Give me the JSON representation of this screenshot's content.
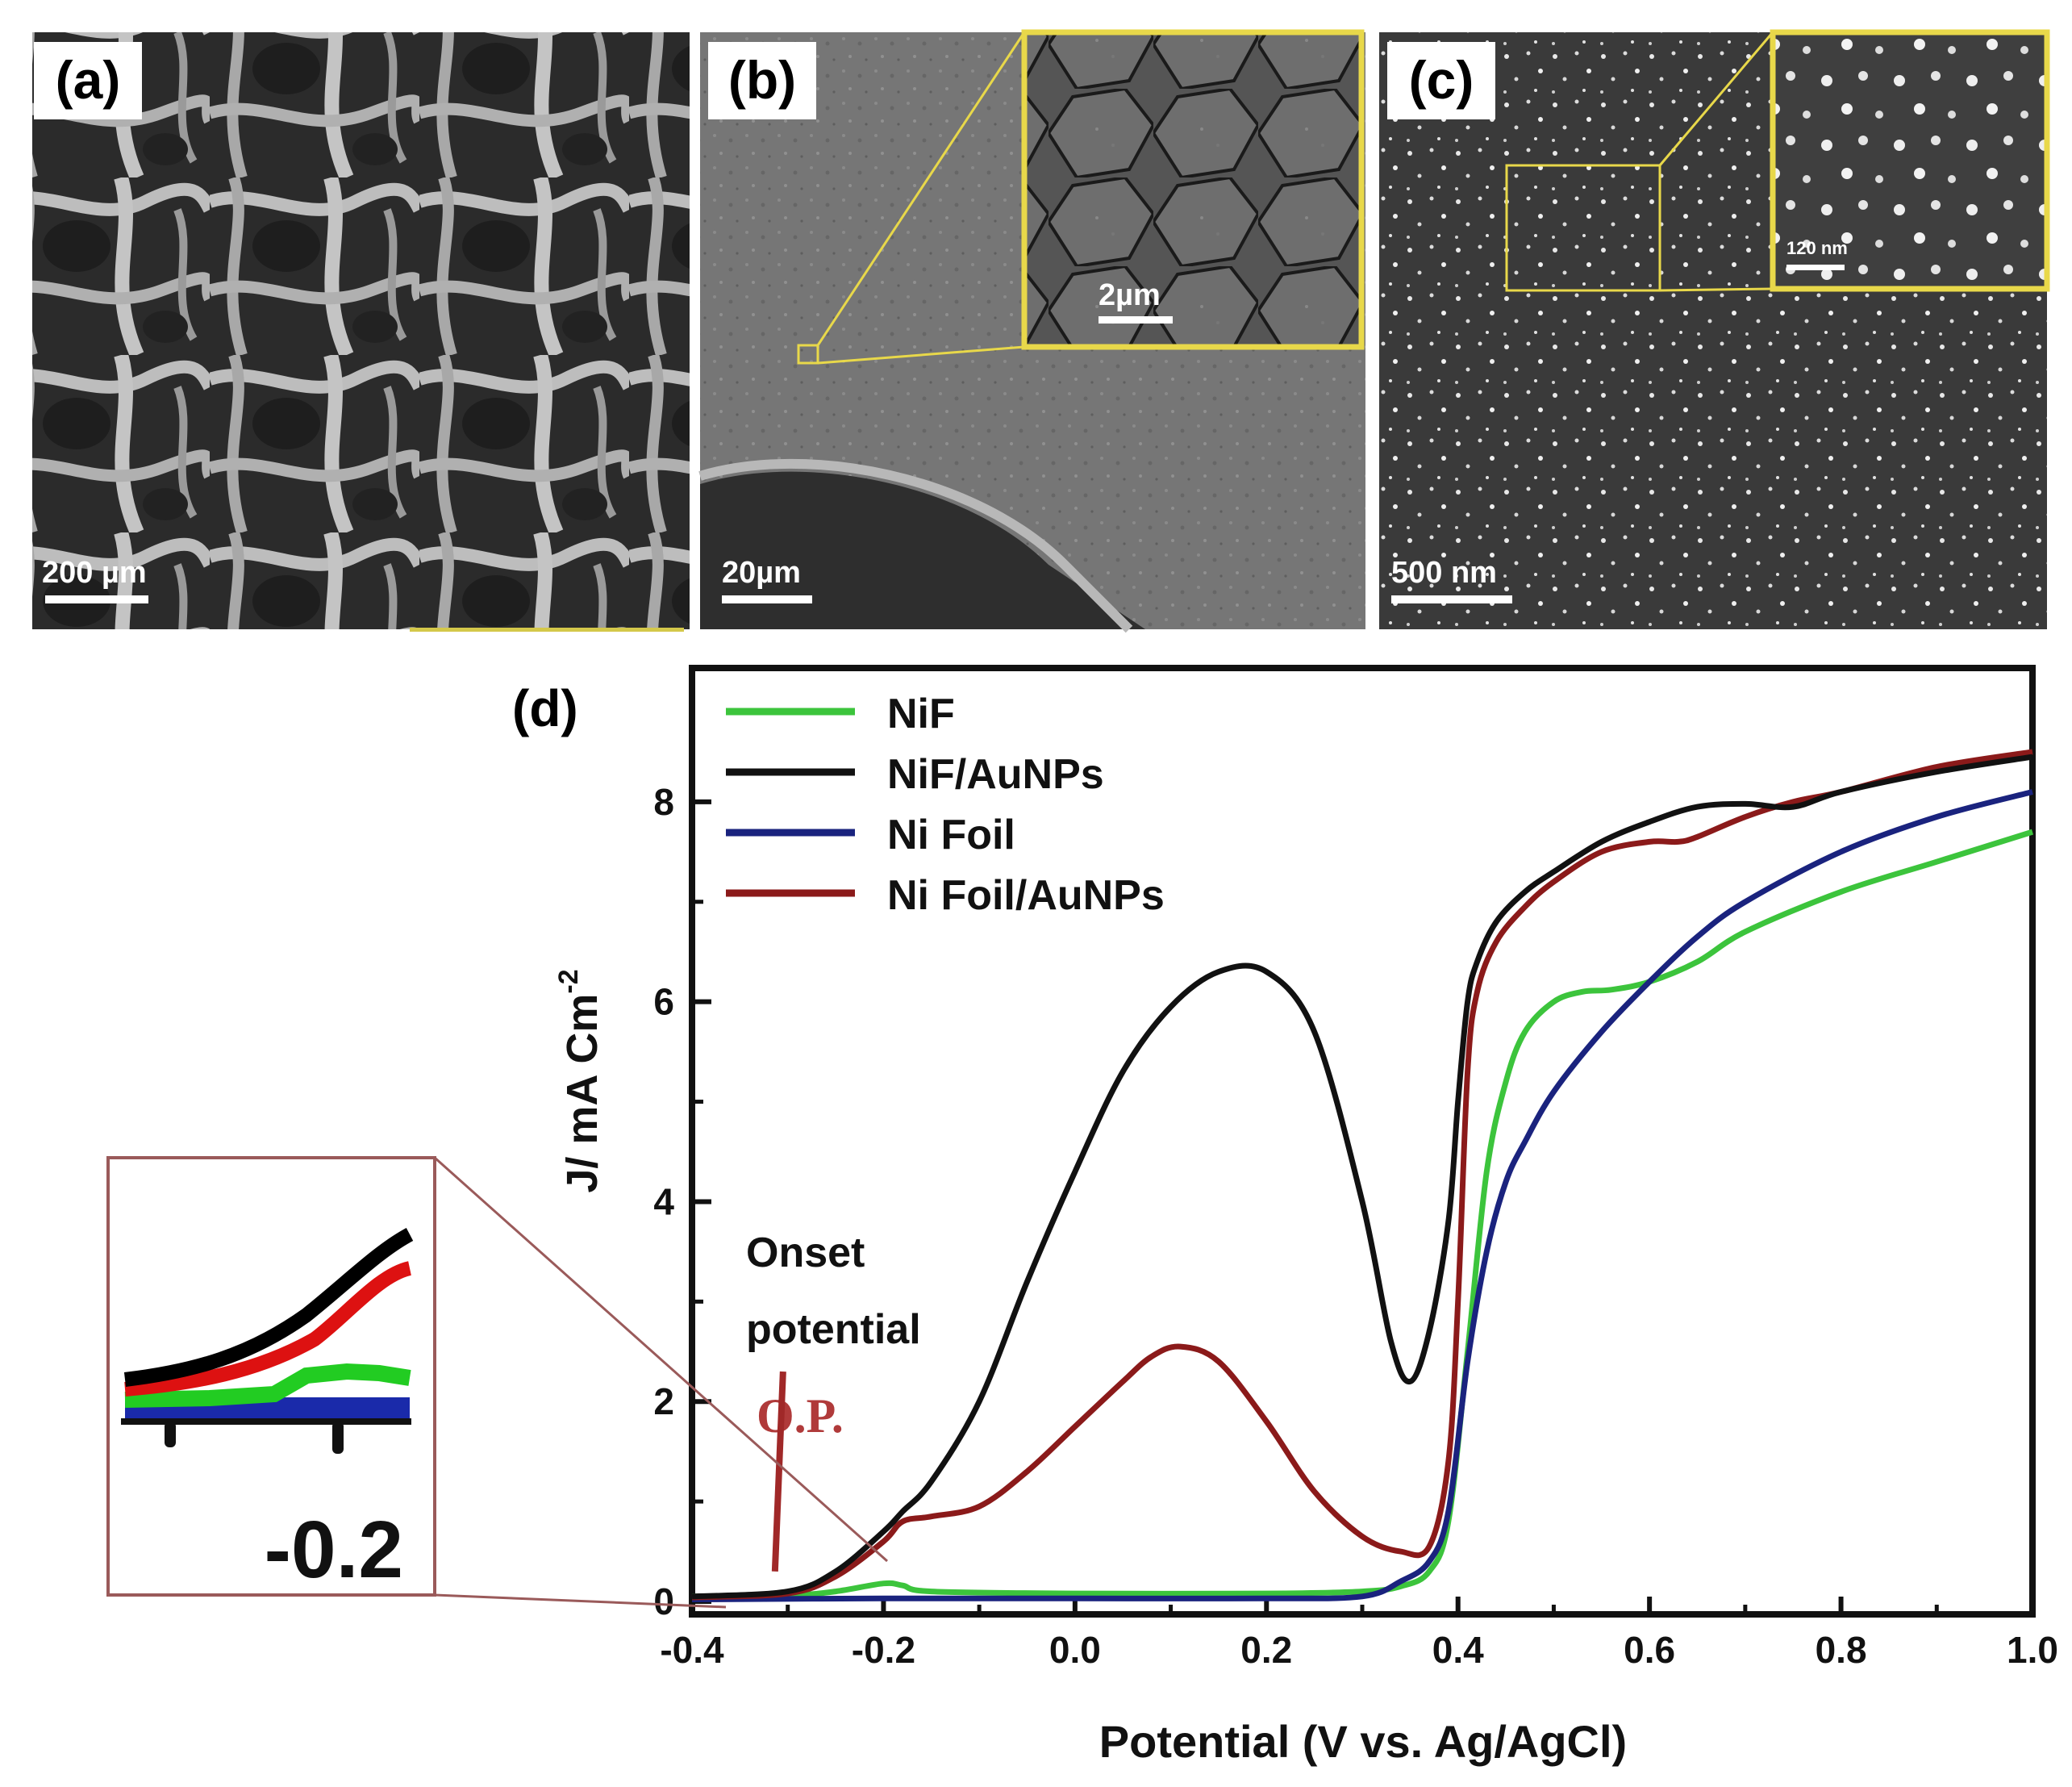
{
  "panels": {
    "a": {
      "label": "(a)",
      "scale_bar": "200 µm"
    },
    "b": {
      "label": "(b)",
      "scale_bar": "20µm",
      "inset_scale_bar": "2µm"
    },
    "c": {
      "label": "(c)",
      "scale_bar": "500 nm",
      "inset_scale_bar": "120 nm"
    }
  },
  "chart_data": {
    "type": "line",
    "panel_label": "(d)",
    "xlabel": "Potential (V vs. Ag/AgCl)",
    "ylabel": "J/ mA Cm",
    "ylabel_superscript": "-2",
    "xlim": [
      -0.4,
      1.0
    ],
    "ylim": [
      0,
      9.0
    ],
    "xticks": [
      -0.4,
      -0.2,
      0.0,
      0.2,
      0.4,
      0.6,
      0.8,
      1.0
    ],
    "xtick_labels": [
      "-0.4",
      "-0.2",
      "0.0",
      "0.2",
      "0.4",
      "0.6",
      "0.8",
      "1.0"
    ],
    "yticks": [
      0,
      2,
      4,
      6,
      8
    ],
    "ytick_labels": [
      "0",
      "2",
      "4",
      "6",
      "8"
    ],
    "series": [
      {
        "name": "NiF",
        "color": "#3cc43c",
        "x": [
          -0.4,
          -0.3,
          -0.25,
          -0.2,
          -0.18,
          -0.15,
          0.0,
          0.2,
          0.3,
          0.34,
          0.37,
          0.39,
          0.41,
          0.43,
          0.45,
          0.47,
          0.5,
          0.53,
          0.56,
          0.6,
          0.65,
          0.7,
          0.8,
          0.9,
          1.0
        ],
        "y": [
          0.05,
          0.06,
          0.1,
          0.18,
          0.16,
          0.1,
          0.08,
          0.08,
          0.1,
          0.15,
          0.3,
          0.8,
          2.5,
          4.3,
          5.2,
          5.7,
          6.0,
          6.1,
          6.12,
          6.2,
          6.4,
          6.7,
          7.1,
          7.4,
          7.7
        ]
      },
      {
        "name": "NiF/AuNPs",
        "color": "#111111",
        "x": [
          -0.4,
          -0.3,
          -0.25,
          -0.2,
          -0.18,
          -0.15,
          -0.1,
          -0.05,
          0.0,
          0.05,
          0.1,
          0.15,
          0.2,
          0.25,
          0.3,
          0.33,
          0.35,
          0.37,
          0.39,
          0.4,
          0.41,
          0.42,
          0.44,
          0.47,
          0.5,
          0.55,
          0.6,
          0.65,
          0.7,
          0.75,
          0.8,
          0.9,
          1.0
        ],
        "y": [
          0.05,
          0.1,
          0.3,
          0.7,
          0.9,
          1.2,
          2.0,
          3.2,
          4.3,
          5.3,
          5.95,
          6.3,
          6.3,
          5.7,
          4.0,
          2.6,
          2.2,
          2.7,
          3.8,
          5.0,
          6.0,
          6.4,
          6.8,
          7.1,
          7.3,
          7.6,
          7.8,
          7.95,
          7.98,
          7.95,
          8.1,
          8.3,
          8.45
        ]
      },
      {
        "name": "Ni Foil",
        "color": "#1a237e",
        "x": [
          -0.4,
          -0.2,
          0.0,
          0.2,
          0.3,
          0.34,
          0.37,
          0.39,
          0.41,
          0.43,
          0.45,
          0.47,
          0.5,
          0.55,
          0.6,
          0.65,
          0.7,
          0.8,
          0.9,
          1.0
        ],
        "y": [
          0.02,
          0.03,
          0.03,
          0.03,
          0.05,
          0.2,
          0.4,
          0.9,
          2.4,
          3.5,
          4.2,
          4.6,
          5.1,
          5.7,
          6.2,
          6.65,
          7.0,
          7.5,
          7.85,
          8.1
        ]
      },
      {
        "name": "Ni Foil/AuNPs",
        "color": "#8b1a1a",
        "x": [
          -0.4,
          -0.3,
          -0.25,
          -0.2,
          -0.18,
          -0.15,
          -0.1,
          -0.05,
          0.0,
          0.05,
          0.08,
          0.11,
          0.15,
          0.2,
          0.25,
          0.3,
          0.34,
          0.37,
          0.39,
          0.4,
          0.41,
          0.42,
          0.44,
          0.47,
          0.5,
          0.55,
          0.6,
          0.63,
          0.65,
          0.7,
          0.75,
          0.8,
          0.9,
          1.0
        ],
        "y": [
          0.04,
          0.08,
          0.25,
          0.6,
          0.8,
          0.85,
          0.95,
          1.3,
          1.75,
          2.2,
          2.45,
          2.55,
          2.4,
          1.8,
          1.1,
          0.65,
          0.5,
          0.55,
          1.4,
          3.0,
          5.3,
          6.1,
          6.6,
          6.95,
          7.2,
          7.5,
          7.6,
          7.6,
          7.65,
          7.85,
          8.0,
          8.1,
          8.35,
          8.5
        ]
      }
    ],
    "legend_position": "top-left",
    "annotations": {
      "onset_line1": "Onset",
      "onset_line2": "potential",
      "op_label": "O.P.",
      "op_x": -0.31,
      "zoom_inset_tick_label": "-0.2"
    }
  }
}
